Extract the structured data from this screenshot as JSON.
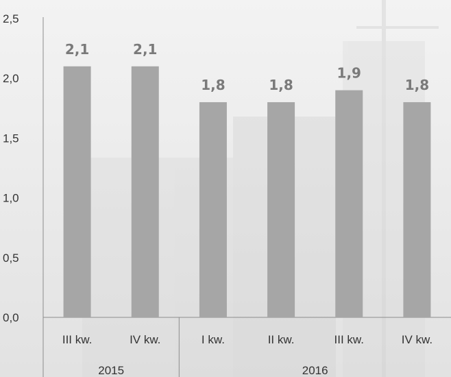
{
  "chart_data": {
    "type": "bar",
    "categories": [
      "III kw.",
      "IV kw.",
      "I kw.",
      "II kw.",
      "III kw.",
      "IV kw."
    ],
    "groups": [
      {
        "label": "2015",
        "count": 2
      },
      {
        "label": "2016",
        "count": 4
      }
    ],
    "values": [
      2.1,
      2.1,
      1.8,
      1.8,
      1.9,
      1.8
    ],
    "data_labels": [
      "2,1",
      "2,1",
      "1,8",
      "1,8",
      "1,9",
      "1,8"
    ],
    "y_ticks": [
      0,
      0.5,
      1,
      1.5,
      2,
      2.5
    ],
    "y_tick_labels": [
      "0,0",
      "0,5",
      "1,0",
      "1,5",
      "2,0",
      "2,5"
    ],
    "ylim": [
      0,
      2.5
    ],
    "grid": false,
    "bar_color": "#a6a6a6",
    "label_color": "#7a7a7a",
    "axis_color": "#8c8c8c"
  }
}
